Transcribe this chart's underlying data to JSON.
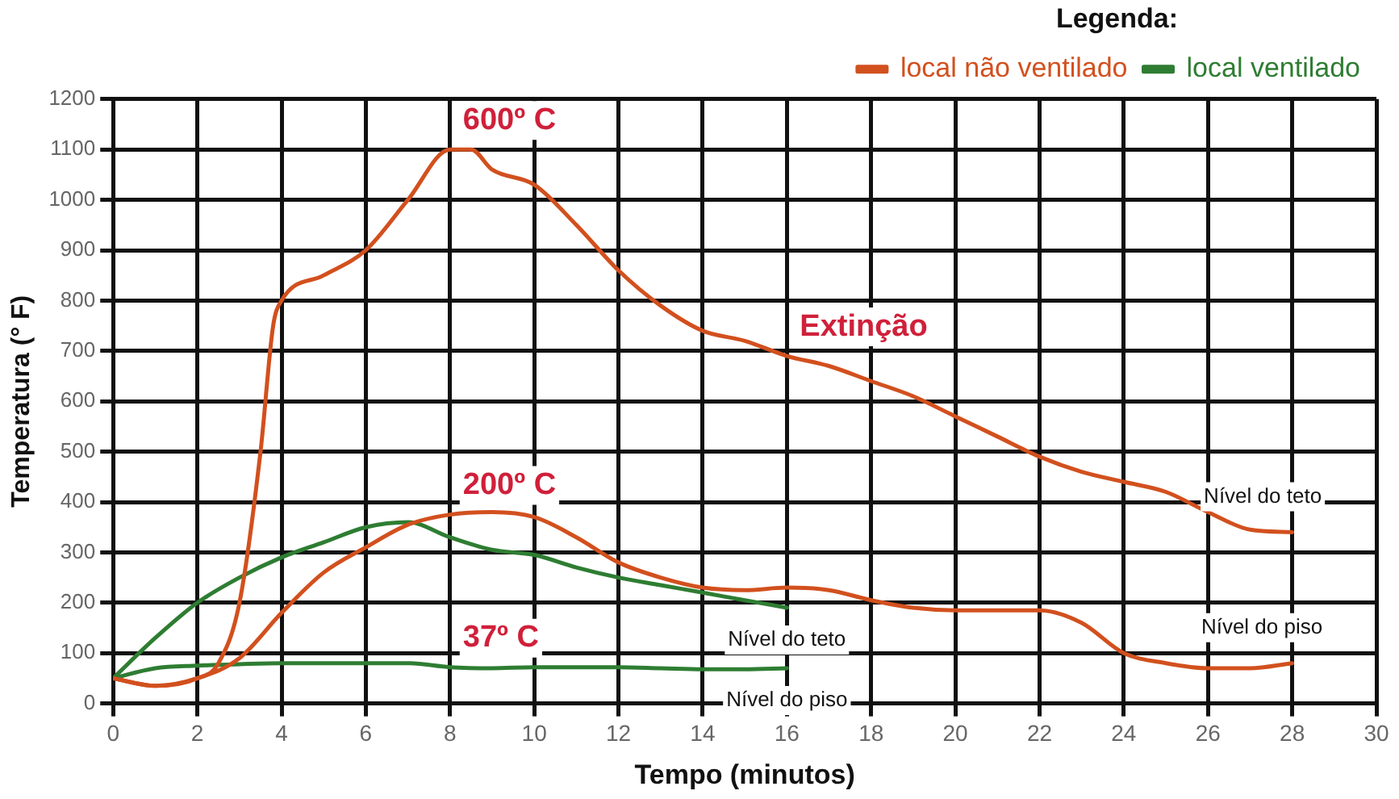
{
  "chart_data": {
    "type": "line",
    "xlabel": "Tempo (minutos)",
    "ylabel": "Temperatura (° F)",
    "legend_title": "Legenda:",
    "legend": "top right",
    "grid": true,
    "marker": "none",
    "line_style": "solid",
    "xlim": [
      0,
      30
    ],
    "xticks": [
      0,
      2,
      4,
      6,
      8,
      10,
      12,
      14,
      16,
      18,
      20,
      22,
      24,
      26,
      28,
      30
    ],
    "ylim": [
      0,
      1200
    ],
    "yticks": [
      0,
      100,
      200,
      300,
      400,
      500,
      600,
      700,
      800,
      900,
      1000,
      1100,
      1200
    ],
    "series": [
      {
        "name": "local não ventilado",
        "color": "#d2501e",
        "x": [
          0,
          1,
          2,
          2.5,
          3,
          3.5,
          3.8,
          4,
          5,
          6,
          7,
          8,
          8.5,
          9,
          10,
          11,
          12,
          13,
          14,
          15,
          16,
          17,
          18,
          19,
          20,
          21,
          22,
          23,
          24,
          25,
          26,
          27,
          28
        ],
        "values": [
          50,
          35,
          50,
          80,
          200,
          500,
          750,
          800,
          850,
          900,
          1000,
          1100,
          1100,
          1060,
          1030,
          950,
          860,
          790,
          740,
          720,
          690,
          670,
          640,
          610,
          570,
          530,
          490,
          460,
          440,
          420,
          380,
          345,
          340
        ]
      },
      {
        "color": "#d2501e",
        "x": [
          0,
          1,
          2,
          3,
          4,
          5,
          6,
          7,
          8,
          9,
          10,
          11,
          12,
          13,
          14,
          15,
          16,
          17,
          18,
          19,
          20,
          21,
          22,
          23,
          24,
          25,
          26,
          27,
          28
        ],
        "values": [
          50,
          35,
          50,
          90,
          180,
          260,
          310,
          355,
          375,
          380,
          370,
          330,
          280,
          250,
          230,
          225,
          230,
          225,
          205,
          190,
          185,
          185,
          185,
          160,
          100,
          80,
          70,
          70,
          80
        ]
      },
      {
        "name": "local ventilado",
        "color": "#2e7d32",
        "x": [
          0,
          1,
          2,
          3,
          4,
          5,
          6,
          7,
          8,
          9,
          10,
          11,
          12,
          13,
          14,
          15,
          16
        ],
        "values": [
          50,
          130,
          200,
          250,
          290,
          320,
          350,
          360,
          330,
          305,
          295,
          270,
          250,
          235,
          220,
          205,
          190
        ]
      },
      {
        "color": "#2e7d32",
        "x": [
          0,
          1,
          2,
          3,
          4,
          5,
          6,
          7,
          8,
          9,
          10,
          11,
          12,
          13,
          14,
          15,
          16
        ],
        "values": [
          50,
          70,
          75,
          78,
          80,
          80,
          80,
          80,
          72,
          70,
          72,
          72,
          72,
          70,
          68,
          68,
          70
        ]
      }
    ],
    "annotations": [
      {
        "text": "600º C",
        "x": 8,
        "y": 1100
      },
      {
        "text": "200º C",
        "x": 8,
        "y": 375
      },
      {
        "text": "37º C",
        "x": 8,
        "y": 72
      },
      {
        "text": "Extinção",
        "x": 16,
        "y": 690
      },
      {
        "text": "Nível do teto",
        "x": 28,
        "y": 340
      },
      {
        "text": "Nível do teto",
        "x": 16,
        "y": 190
      },
      {
        "text": "Nível do piso",
        "x": 28,
        "y": 80
      },
      {
        "text": "Nível do piso",
        "x": 16,
        "y": 70
      }
    ]
  }
}
